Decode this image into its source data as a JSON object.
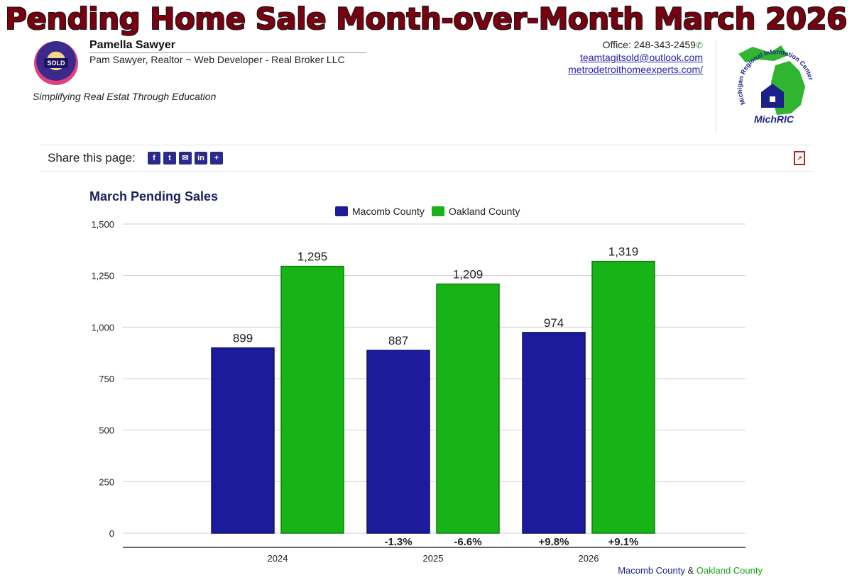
{
  "header": {
    "title": "Pending Home Sale Month-over-Month March 2026"
  },
  "agent": {
    "logo_text": "SOLD",
    "name": "Pamella Sawyer",
    "title": "Pam Sawyer, Realtor ~ Web Developer - Real Broker LLC",
    "tagline": "Simplifying Real Estat Through Education",
    "office": "Office: 248-343-2459",
    "email": "teamtagitsold@outlook.com",
    "website": "metrodetroithomeexperts.com/"
  },
  "michric": {
    "arc_text": "Michigan Regional Information Center",
    "label": "MichRIC"
  },
  "share": {
    "label": "Share this page:",
    "icons": [
      "facebook-icon",
      "twitter-icon",
      "email-icon",
      "linkedin-icon",
      "plus-icon"
    ],
    "pdf_icon": "pdf-icon"
  },
  "colors": {
    "macomb": "#1b1b9c",
    "oakland": "#17b317",
    "title": "#7a0010"
  },
  "chart_data": {
    "type": "bar",
    "title": "March Pending Sales",
    "categories": [
      "2024",
      "2025",
      "2026"
    ],
    "series": [
      {
        "name": "Macomb County",
        "values": [
          899,
          887,
          974
        ],
        "changes": [
          "",
          "-1.3%",
          "+9.8%"
        ]
      },
      {
        "name": "Oakland County",
        "values": [
          1295,
          1209,
          1319
        ],
        "changes": [
          "",
          "-6.6%",
          "+9.1%"
        ]
      }
    ],
    "ylim": [
      0,
      1500
    ],
    "yticks": [
      0,
      250,
      500,
      750,
      1000,
      1250,
      1500
    ],
    "ytick_labels": [
      "0",
      "250",
      "500",
      "750",
      "1,000",
      "1,250",
      "1,500"
    ],
    "value_labels": [
      [
        "899",
        "887",
        "974"
      ],
      [
        "1,295",
        "1,209",
        "1,319"
      ]
    ],
    "grid": true,
    "legend": "top-center",
    "xlabel": "",
    "ylabel": ""
  },
  "footer": {
    "macomb": "Macomb County",
    "amp": " & ",
    "oakland": "Oakland County"
  }
}
